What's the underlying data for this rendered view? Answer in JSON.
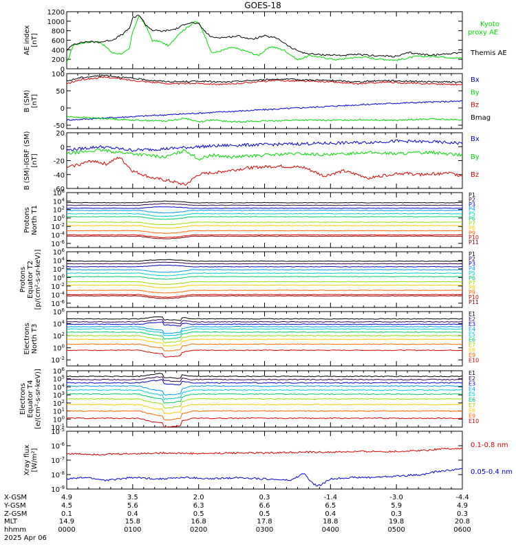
{
  "title": "GOES-18",
  "colors": {
    "black": "#000000",
    "green": "#00dd00",
    "red": "#dd0000",
    "blue": "#0000dd",
    "flux_colors": [
      "#000000",
      "#33004d",
      "#0000cc",
      "#0099ff",
      "#00cccc",
      "#00cc66",
      "#99dd00",
      "#ffcc00",
      "#ff6600",
      "#dd0000",
      "#880000"
    ]
  },
  "chart_data": [
    {
      "type": "line",
      "id": "ae",
      "ylabel": [
        "AE index",
        "[nT]"
      ],
      "ylim": [
        0,
        1200
      ],
      "yticks": [
        "0",
        "200",
        "400",
        "600",
        "800",
        "1000",
        "1200"
      ],
      "legend": [
        {
          "label": "Kyoto",
          "color": "#00dd00"
        },
        {
          "label": "proxy AE",
          "color": "#00dd00"
        },
        {
          "label": "Themis AE",
          "color": "#000000"
        }
      ],
      "series": [
        {
          "name": "Kyoto proxy AE",
          "color": "#00dd00",
          "x": [
            0,
            0.1,
            0.3,
            0.5,
            0.7,
            0.85,
            0.95,
            1.0,
            1.1,
            1.2,
            1.3,
            1.4,
            1.55,
            1.7,
            1.8,
            1.9,
            1.95,
            2.0,
            2.1,
            2.2,
            2.3,
            2.5,
            2.7,
            2.9,
            3.1,
            3.3,
            3.5,
            3.7,
            3.9,
            4.1,
            4.3,
            4.5,
            4.7,
            5.0,
            5.3,
            5.6,
            5.8,
            6.0
          ],
          "y": [
            120,
            500,
            560,
            570,
            330,
            320,
            420,
            780,
            1120,
            900,
            590,
            580,
            480,
            740,
            840,
            950,
            990,
            970,
            680,
            330,
            360,
            450,
            380,
            280,
            470,
            390,
            190,
            280,
            230,
            190,
            230,
            250,
            210,
            180,
            260,
            260,
            240,
            220
          ]
        },
        {
          "name": "Themis AE",
          "color": "#000000",
          "x": [
            0,
            0.1,
            0.3,
            0.5,
            0.7,
            0.85,
            0.95,
            1.0,
            1.1,
            1.2,
            1.3,
            1.45,
            1.6,
            1.7,
            1.8,
            1.9,
            2.0,
            2.1,
            2.2,
            2.4,
            2.6,
            2.8,
            3.0,
            3.2,
            3.4,
            3.6,
            3.8,
            4.0,
            4.2,
            4.4,
            4.6,
            4.8,
            5.0,
            5.2,
            5.4,
            5.6,
            5.8,
            6.0
          ],
          "y": [
            380,
            520,
            570,
            560,
            610,
            730,
            850,
            1060,
            1130,
            920,
            810,
            790,
            820,
            860,
            950,
            970,
            940,
            780,
            660,
            660,
            690,
            620,
            690,
            640,
            440,
            330,
            300,
            290,
            280,
            300,
            280,
            270,
            260,
            340,
            300,
            290,
            320,
            350
          ]
        }
      ]
    },
    {
      "type": "line",
      "id": "bsm",
      "ylabel": [
        "B (SM)",
        "[nT]"
      ],
      "ylim": [
        -60,
        100
      ],
      "yticks": [
        "-50",
        "0",
        "50",
        "100"
      ],
      "ytick_values": [
        -50,
        0,
        50,
        100
      ],
      "legend": [
        {
          "label": "Bx",
          "color": "#0000dd"
        },
        {
          "label": "By",
          "color": "#00dd00"
        },
        {
          "label": "Bz",
          "color": "#dd0000"
        },
        {
          "label": "Bmag",
          "color": "#000000"
        }
      ],
      "series": [
        {
          "name": "Bx",
          "color": "#0000dd",
          "x": [
            0,
            0.5,
            1.0,
            1.5,
            2.0,
            2.5,
            3.0,
            3.5,
            4.0,
            4.5,
            5.0,
            5.5,
            6.0
          ],
          "y": [
            -35,
            -30,
            -25,
            -20,
            -15,
            -10,
            -5,
            0,
            5,
            10,
            14,
            17,
            20
          ]
        },
        {
          "name": "By",
          "color": "#00dd00",
          "x": [
            0,
            0.5,
            1.0,
            1.5,
            1.8,
            2.0,
            2.2,
            2.5,
            3.0,
            3.5,
            4.0,
            4.5,
            5.0,
            5.5,
            6.0
          ],
          "y": [
            -25,
            -30,
            -35,
            -38,
            -30,
            -40,
            -35,
            -40,
            -38,
            -35,
            -36,
            -34,
            -36,
            -32,
            -35
          ]
        },
        {
          "name": "Bz",
          "color": "#dd0000",
          "x": [
            0,
            0.2,
            0.4,
            0.6,
            0.8,
            1.0,
            1.3,
            1.6,
            2.0,
            2.4,
            2.8,
            3.2,
            3.6,
            4.0,
            4.4,
            4.8,
            5.2,
            5.6,
            6.0
          ],
          "y": [
            70,
            82,
            86,
            90,
            85,
            80,
            75,
            70,
            72,
            68,
            75,
            80,
            78,
            76,
            70,
            75,
            72,
            70,
            68
          ]
        },
        {
          "name": "Bmag",
          "color": "#000000",
          "x": [
            0,
            0.2,
            0.4,
            0.6,
            0.8,
            1.0,
            1.3,
            1.6,
            2.0,
            2.4,
            2.8,
            3.2,
            3.6,
            4.0,
            4.4,
            4.8,
            5.2,
            5.6,
            6.0
          ],
          "y": [
            78,
            88,
            92,
            95,
            90,
            86,
            80,
            76,
            78,
            75,
            80,
            84,
            82,
            80,
            76,
            80,
            78,
            76,
            75
          ]
        }
      ]
    },
    {
      "type": "line",
      "id": "bsm-igrf",
      "ylabel": [
        "B (SM)-IGRF (SM)",
        "[nT]"
      ],
      "ylim": [
        -60,
        20
      ],
      "yticks": [
        "-60",
        "-40",
        "-20",
        "0",
        "20"
      ],
      "ytick_values": [
        -60,
        -40,
        -20,
        0,
        20
      ],
      "legend": [
        {
          "label": "Bx",
          "color": "#0000dd"
        },
        {
          "label": "By",
          "color": "#00dd00"
        },
        {
          "label": "Bz",
          "color": "#dd0000"
        }
      ],
      "series": [
        {
          "name": "Bx",
          "color": "#0000dd",
          "x": [
            0,
            0.5,
            1.0,
            1.5,
            2.0,
            2.5,
            3.0,
            3.5,
            4.0,
            4.5,
            5.0,
            5.5,
            6.0
          ],
          "y": [
            -5,
            0,
            -5,
            -3,
            0,
            2,
            3,
            4,
            5,
            6,
            8,
            7,
            5
          ]
        },
        {
          "name": "By",
          "color": "#00dd00",
          "x": [
            0,
            0.5,
            1.0,
            1.5,
            1.8,
            2.0,
            2.2,
            2.5,
            3.0,
            3.5,
            4.0,
            4.5,
            5.0,
            5.5,
            6.0
          ],
          "y": [
            -10,
            -5,
            -10,
            -15,
            -5,
            -18,
            -12,
            -15,
            -12,
            -10,
            -12,
            -8,
            -10,
            -8,
            -12
          ]
        },
        {
          "name": "Bz",
          "color": "#dd0000",
          "x": [
            0,
            0.2,
            0.4,
            0.6,
            0.8,
            1.0,
            1.3,
            1.6,
            1.8,
            2.0,
            2.4,
            2.8,
            3.2,
            3.6,
            3.9,
            4.2,
            4.6,
            5.0,
            5.4,
            5.8,
            6.0
          ],
          "y": [
            -30,
            -25,
            -20,
            -25,
            -15,
            -35,
            -45,
            -50,
            -55,
            -40,
            -35,
            -30,
            -28,
            -30,
            -42,
            -35,
            -45,
            -38,
            -40,
            -38,
            -42
          ]
        }
      ]
    },
    {
      "type": "line",
      "id": "protons-north",
      "ylabel": [
        "Protons",
        "North T1"
      ],
      "log": true,
      "ylim_exp": [
        -7,
        6
      ],
      "yticks": [
        "10^6",
        "10^4",
        "10^2",
        "10^0",
        "10^-2",
        "10^-4",
        "10^-6"
      ],
      "ytick_exps": [
        6,
        4,
        2,
        0,
        -2,
        -4,
        -6
      ],
      "legend_labels": [
        "P1",
        "P2",
        "P3",
        "P4",
        "P5",
        "P6",
        "P7",
        "P8",
        "P9",
        "P10",
        "P11"
      ],
      "levels_exp": [
        3.6,
        3.0,
        2.3,
        1.8,
        1.0,
        0.3,
        -1.0,
        -1.8,
        -3.0,
        -4.0,
        -4.3
      ]
    },
    {
      "type": "line",
      "id": "protons-equator",
      "ylabel": [
        "Protons",
        "Equator T2",
        "[p/(cm²-s-sr-keV)]"
      ],
      "log": true,
      "ylim_exp": [
        -7,
        6
      ],
      "yticks": [
        "10^6",
        "10^4",
        "10^2",
        "10^0",
        "10^-2",
        "10^-4",
        "10^-6"
      ],
      "ytick_exps": [
        6,
        4,
        2,
        0,
        -2,
        -4,
        -6
      ],
      "legend_labels": [
        "P1",
        "P2",
        "P3",
        "P4",
        "P5",
        "P6",
        "P7",
        "P8",
        "P9",
        "P10",
        "P11"
      ],
      "levels_exp": [
        3.8,
        3.2,
        2.5,
        1.8,
        1.0,
        0.2,
        -1.0,
        -1.8,
        -3.0,
        -4.0,
        -4.3
      ]
    },
    {
      "type": "line",
      "id": "electrons-north",
      "ylabel": [
        "Electrons",
        "North T3"
      ],
      "log": true,
      "ylim_exp": [
        -3,
        6
      ],
      "yticks": [
        "10^6",
        "10^4",
        "10^2",
        "10^0",
        "10^-2"
      ],
      "ytick_exps": [
        6,
        4,
        2,
        0,
        -2
      ],
      "legend_labels": [
        "E1",
        "E2",
        "E3",
        "E4",
        "E5",
        "E6",
        "E7",
        "E8",
        "E9",
        "E10"
      ],
      "levels_exp": [
        4.8,
        4.3,
        3.9,
        3.5,
        3.1,
        2.6,
        2.0,
        1.4,
        0.6,
        -0.4
      ]
    },
    {
      "type": "line",
      "id": "electrons-equator",
      "ylabel": [
        "Electrons",
        "Equator T4",
        "[e/(cm²-s-sr-keV)]"
      ],
      "log": true,
      "ylim_exp": [
        -1,
        6
      ],
      "yticks": [
        "10^6",
        "10^5",
        "10^4",
        "10^3",
        "10^2",
        "10^1",
        "10^0",
        "10^-1"
      ],
      "ytick_exps": [
        6,
        5,
        4,
        3,
        2,
        1,
        0,
        -1
      ],
      "legend_labels": [
        "E1",
        "E2",
        "E3",
        "E4",
        "E5",
        "E6",
        "E7",
        "E8",
        "E9",
        "E10"
      ],
      "levels_exp": [
        5.3,
        4.9,
        4.5,
        4.1,
        3.6,
        3.1,
        2.5,
        1.8,
        1.0,
        0.1
      ]
    },
    {
      "type": "line",
      "id": "xray",
      "ylabel": [
        "Xray flux",
        "[W/m²]"
      ],
      "log": true,
      "ylim_exp": [
        -9,
        -5
      ],
      "yticks": [
        "10^-5",
        "10^-6",
        "10^-7",
        "10^-8",
        "10^-9"
      ],
      "ytick_exps": [
        -5,
        -6,
        -7,
        -8,
        -9
      ],
      "legend": [
        {
          "label": "0.1-0.8 nm",
          "color": "#dd0000"
        },
        {
          "label": "0.05-0.4 nm",
          "color": "#0000dd"
        }
      ],
      "series": [
        {
          "name": "0.1-0.8 nm",
          "color": "#dd0000",
          "x": [
            0,
            0.5,
            1.0,
            1.5,
            2.0,
            2.5,
            3.0,
            3.5,
            4.0,
            4.5,
            5.0,
            5.5,
            5.7,
            6.0
          ],
          "y_exp": [
            -6.55,
            -6.6,
            -6.55,
            -6.5,
            -6.55,
            -6.5,
            -6.5,
            -6.45,
            -6.45,
            -6.4,
            -6.4,
            -6.3,
            -6.2,
            -6.2
          ]
        },
        {
          "name": "0.05-0.4 nm",
          "color": "#0000dd",
          "x": [
            0,
            0.3,
            0.6,
            1.0,
            1.4,
            1.8,
            2.2,
            2.6,
            3.0,
            3.4,
            3.6,
            3.7,
            3.8,
            3.9,
            4.0,
            4.3,
            4.6,
            5.0,
            5.4,
            5.6,
            5.8,
            6.0
          ],
          "y_exp": [
            -8.3,
            -8.2,
            -8.4,
            -8.2,
            -8.3,
            -8.2,
            -8.3,
            -8.2,
            -8.3,
            -8.4,
            -7.9,
            -8.5,
            -8.8,
            -8.6,
            -8.3,
            -8.2,
            -8.2,
            -8.1,
            -8.0,
            -7.8,
            -7.7,
            -7.6
          ]
        }
      ]
    }
  ],
  "xaxis": {
    "row_labels": [
      "X-GSM",
      "Y-GSM",
      "Z-GSM",
      "MLT",
      "hhmm"
    ],
    "date": "2025 Apr 06",
    "tick_hours": [
      0,
      1,
      2,
      3,
      4,
      5,
      6
    ],
    "columns": [
      {
        "x": "4.9",
        "y": "4.5",
        "z": "0.1",
        "mlt": "14.9",
        "hhmm": "0000"
      },
      {
        "x": "3.5",
        "y": "5.6",
        "z": "0.4",
        "mlt": "15.8",
        "hhmm": "0100"
      },
      {
        "x": "2.0",
        "y": "6.3",
        "z": "0.5",
        "mlt": "16.8",
        "hhmm": "0200"
      },
      {
        "x": "0.3",
        "y": "6.6",
        "z": "0.5",
        "mlt": "17.8",
        "hhmm": "0300"
      },
      {
        "x": "-1.4",
        "y": "6.5",
        "z": "0.4",
        "mlt": "18.8",
        "hhmm": "0400"
      },
      {
        "x": "-3.0",
        "y": "5.9",
        "z": "0.3",
        "mlt": "19.8",
        "hhmm": "0500"
      },
      {
        "x": "-4.4",
        "y": "4.9",
        "z": "0.3",
        "mlt": "20.8",
        "hhmm": "0600"
      }
    ]
  }
}
